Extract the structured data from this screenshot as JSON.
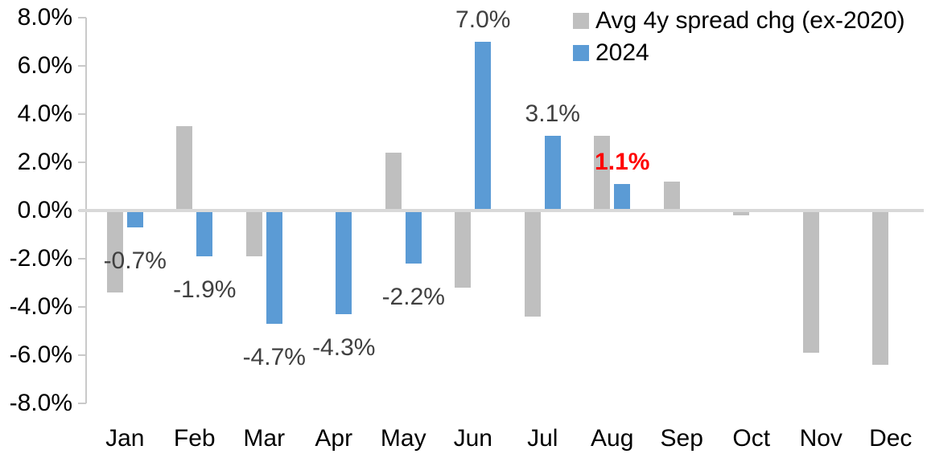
{
  "chart_data": {
    "type": "bar",
    "title": "",
    "xlabel": "",
    "ylabel": "",
    "categories": [
      "Jan",
      "Feb",
      "Mar",
      "Apr",
      "May",
      "Jun",
      "Jul",
      "Aug",
      "Sep",
      "Oct",
      "Nov",
      "Dec"
    ],
    "series": [
      {
        "name": "Avg 4y spread chg (ex-2020)",
        "color": "#BFBFBF",
        "values": [
          -3.4,
          3.5,
          -1.9,
          0.0,
          2.4,
          -3.2,
          -4.4,
          3.1,
          1.2,
          -0.2,
          -5.9,
          -6.4
        ]
      },
      {
        "name": "2024",
        "color": "#5B9BD5",
        "values": [
          -0.7,
          -1.9,
          -4.7,
          -4.3,
          -2.2,
          7.0,
          3.1,
          1.1,
          null,
          null,
          null,
          null
        ]
      }
    ],
    "data_labels": [
      {
        "index": 0,
        "text": "-0.7%",
        "color": "#404040",
        "bold": false
      },
      {
        "index": 1,
        "text": "-1.9%",
        "color": "#404040",
        "bold": false
      },
      {
        "index": 2,
        "text": "-4.7%",
        "color": "#404040",
        "bold": false
      },
      {
        "index": 3,
        "text": "-4.3%",
        "color": "#404040",
        "bold": false
      },
      {
        "index": 4,
        "text": "-2.2%",
        "color": "#404040",
        "bold": false
      },
      {
        "index": 5,
        "text": "7.0%",
        "color": "#404040",
        "bold": false
      },
      {
        "index": 6,
        "text": "3.1%",
        "color": "#404040",
        "bold": false
      },
      {
        "index": 7,
        "text": "1.1%",
        "color": "#FF0000",
        "bold": true
      }
    ],
    "ylim": [
      -8,
      8
    ],
    "ytick_step": 2,
    "ytick_labels": [
      "8.0%",
      "6.0%",
      "4.0%",
      "2.0%",
      "0.0%",
      "-2.0%",
      "-4.0%",
      "-6.0%",
      "-8.0%"
    ],
    "legend_position": "top-right",
    "grid": false,
    "axis_color": "#C9C9C9",
    "zero_line_color": "#D9D9D9"
  }
}
